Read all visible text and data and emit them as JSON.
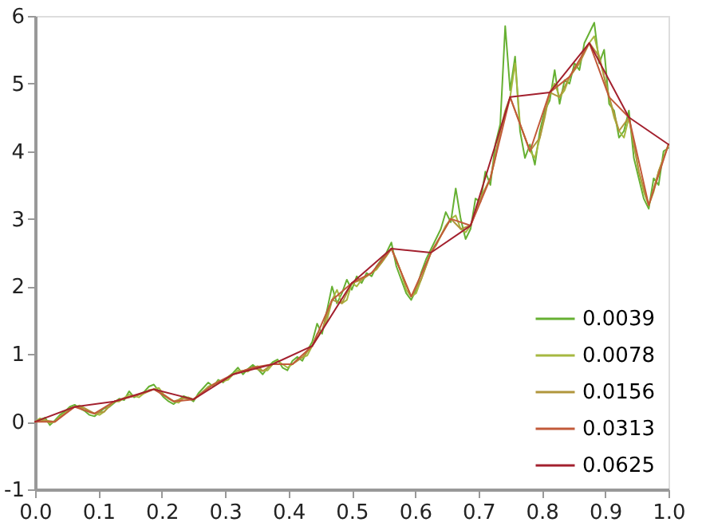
{
  "chart_data": {
    "type": "line",
    "x": [
      0,
      0.0078,
      0.0156,
      0.0234,
      0.0313,
      0.0391,
      0.0469,
      0.0547,
      0.0625,
      0.0703,
      0.0781,
      0.0859,
      0.0938,
      0.1016,
      0.1094,
      0.1172,
      0.125,
      0.1328,
      0.1406,
      0.1484,
      0.1563,
      0.1641,
      0.1719,
      0.1797,
      0.1875,
      0.1953,
      0.2031,
      0.2109,
      0.2188,
      0.2266,
      0.2344,
      0.2422,
      0.25,
      0.2578,
      0.2656,
      0.2734,
      0.2813,
      0.2891,
      0.2969,
      0.3047,
      0.3125,
      0.3203,
      0.3281,
      0.3359,
      0.3438,
      0.3516,
      0.3594,
      0.3672,
      0.375,
      0.3828,
      0.3906,
      0.3984,
      0.4063,
      0.4141,
      0.4219,
      0.4297,
      0.4375,
      0.4453,
      0.4531,
      0.4609,
      0.4688,
      0.4766,
      0.4844,
      0.4922,
      0.5,
      0.5078,
      0.5156,
      0.5234,
      0.5313,
      0.5391,
      0.5469,
      0.5547,
      0.5625,
      0.5703,
      0.5781,
      0.5859,
      0.5938,
      0.6016,
      0.6094,
      0.6172,
      0.625,
      0.6328,
      0.6406,
      0.6484,
      0.6563,
      0.6641,
      0.6719,
      0.6797,
      0.6875,
      0.6953,
      0.7031,
      0.7109,
      0.7188,
      0.7266,
      0.7344,
      0.7422,
      0.75,
      0.7578,
      0.7656,
      0.7734,
      0.7813,
      0.7891,
      0.7969,
      0.8047,
      0.8125,
      0.8203,
      0.8281,
      0.8359,
      0.8438,
      0.8516,
      0.8594,
      0.8672,
      0.875,
      0.8828,
      0.8906,
      0.8984,
      0.9063,
      0.9141,
      0.9219,
      0.9297,
      0.9375,
      0.9453,
      0.9531,
      0.9609,
      0.9688,
      0.9766,
      0.9844,
      0.9922,
      1.0
    ],
    "series": [
      {
        "name": "0.0039",
        "color": "#66b032",
        "values": [
          0,
          0.03,
          0.06,
          -0.05,
          0.02,
          0.1,
          0.15,
          0.22,
          0.25,
          0.2,
          0.16,
          0.1,
          0.08,
          0.14,
          0.2,
          0.22,
          0.28,
          0.34,
          0.32,
          0.45,
          0.36,
          0.4,
          0.44,
          0.52,
          0.55,
          0.45,
          0.36,
          0.3,
          0.26,
          0.32,
          0.38,
          0.35,
          0.3,
          0.42,
          0.5,
          0.58,
          0.52,
          0.62,
          0.58,
          0.66,
          0.72,
          0.8,
          0.7,
          0.78,
          0.84,
          0.78,
          0.7,
          0.8,
          0.88,
          0.92,
          0.8,
          0.76,
          0.9,
          0.96,
          0.9,
          1.05,
          1.18,
          1.45,
          1.3,
          1.65,
          2.0,
          1.75,
          1.9,
          2.1,
          1.95,
          2.15,
          2.05,
          2.2,
          2.15,
          2.3,
          2.4,
          2.5,
          2.65,
          2.3,
          2.1,
          1.9,
          1.8,
          1.95,
          2.2,
          2.4,
          2.55,
          2.7,
          2.85,
          3.1,
          2.95,
          3.45,
          3.0,
          2.7,
          2.85,
          3.3,
          3.25,
          3.7,
          3.5,
          4.1,
          4.4,
          5.85,
          4.9,
          5.4,
          4.3,
          3.9,
          4.1,
          3.8,
          4.3,
          4.6,
          4.75,
          5.2,
          4.7,
          5.05,
          5.0,
          5.3,
          5.2,
          5.6,
          5.75,
          5.9,
          5.3,
          5.5,
          4.7,
          4.6,
          4.2,
          4.3,
          4.6,
          3.9,
          3.6,
          3.3,
          3.15,
          3.6,
          3.5,
          4.0,
          4.05
        ]
      },
      {
        "name": "0.0078",
        "color": "#a6b840",
        "values": [
          0,
          0.05,
          0.02,
          -0.02,
          0,
          0.08,
          0.12,
          0.2,
          0.22,
          0.24,
          0.2,
          0.14,
          0.12,
          0.1,
          0.15,
          0.24,
          0.3,
          0.3,
          0.35,
          0.4,
          0.38,
          0.36,
          0.42,
          0.47,
          0.48,
          0.5,
          0.4,
          0.34,
          0.3,
          0.28,
          0.35,
          0.36,
          0.33,
          0.38,
          0.45,
          0.52,
          0.55,
          0.6,
          0.6,
          0.62,
          0.7,
          0.76,
          0.75,
          0.74,
          0.8,
          0.82,
          0.75,
          0.76,
          0.85,
          0.9,
          0.85,
          0.8,
          0.85,
          0.92,
          0.95,
          0.98,
          1.12,
          1.3,
          1.35,
          1.5,
          1.8,
          1.95,
          1.75,
          1.8,
          2.05,
          2.0,
          2.1,
          2.15,
          2.2,
          2.25,
          2.35,
          2.45,
          2.56,
          2.4,
          2.2,
          1.95,
          1.85,
          1.9,
          2.1,
          2.3,
          2.5,
          2.6,
          2.75,
          2.9,
          3.0,
          3.05,
          2.85,
          2.8,
          2.9,
          3.1,
          3.3,
          3.45,
          3.6,
          3.9,
          4.3,
          4.6,
          4.8,
          5.3,
          4.4,
          4.2,
          4.0,
          3.9,
          4.2,
          4.5,
          4.87,
          5.0,
          4.8,
          4.9,
          5.1,
          5.2,
          5.3,
          5.5,
          5.6,
          5.7,
          5.4,
          5.1,
          4.8,
          4.5,
          4.3,
          4.2,
          4.5,
          4.1,
          3.7,
          3.4,
          3.2,
          3.4,
          3.7,
          3.9,
          4.1
        ]
      },
      {
        "name": "0.0156",
        "color": "#b0963c",
        "x": [
          0,
          0.0156,
          0.0313,
          0.0469,
          0.0625,
          0.0781,
          0.0938,
          0.1094,
          0.125,
          0.1406,
          0.1563,
          0.1719,
          0.1875,
          0.2031,
          0.2188,
          0.2344,
          0.25,
          0.2656,
          0.2813,
          0.2969,
          0.3125,
          0.3281,
          0.3438,
          0.3594,
          0.375,
          0.3906,
          0.4063,
          0.4219,
          0.4375,
          0.4531,
          0.4688,
          0.4844,
          0.5,
          0.5156,
          0.5313,
          0.5469,
          0.5625,
          0.5781,
          0.5938,
          0.6094,
          0.625,
          0.6406,
          0.6563,
          0.6719,
          0.6875,
          0.7031,
          0.7188,
          0.7344,
          0.75,
          0.7656,
          0.7813,
          0.7969,
          0.8125,
          0.8281,
          0.8438,
          0.8594,
          0.875,
          0.8906,
          0.9063,
          0.9219,
          0.9375,
          0.9531,
          0.9688,
          0.9844,
          1.0
        ],
        "values": [
          0,
          0.02,
          0,
          0.12,
          0.22,
          0.2,
          0.12,
          0.15,
          0.3,
          0.35,
          0.38,
          0.42,
          0.48,
          0.4,
          0.3,
          0.35,
          0.33,
          0.45,
          0.55,
          0.6,
          0.7,
          0.75,
          0.8,
          0.75,
          0.85,
          0.85,
          0.85,
          0.95,
          1.12,
          1.35,
          1.8,
          1.75,
          2.05,
          2.1,
          2.2,
          2.35,
          2.56,
          2.2,
          1.85,
          2.1,
          2.5,
          2.75,
          3.0,
          2.85,
          2.9,
          3.3,
          3.6,
          4.3,
          4.8,
          4.4,
          4.0,
          4.2,
          4.87,
          4.8,
          5.1,
          5.3,
          5.6,
          5.4,
          4.8,
          4.3,
          4.5,
          3.7,
          3.2,
          3.7,
          4.1
        ]
      },
      {
        "name": "0.0313",
        "color": "#c25a3a",
        "x": [
          0,
          0.0313,
          0.0625,
          0.0938,
          0.125,
          0.1563,
          0.1875,
          0.2188,
          0.25,
          0.2813,
          0.3125,
          0.3438,
          0.375,
          0.4063,
          0.4375,
          0.4688,
          0.5,
          0.5313,
          0.5625,
          0.5938,
          0.625,
          0.6563,
          0.6875,
          0.7188,
          0.75,
          0.7813,
          0.8125,
          0.8438,
          0.875,
          0.9063,
          0.9375,
          0.9688,
          1.0
        ],
        "values": [
          0,
          0,
          0.22,
          0.12,
          0.3,
          0.38,
          0.48,
          0.3,
          0.33,
          0.55,
          0.7,
          0.8,
          0.85,
          0.85,
          1.12,
          1.8,
          2.05,
          2.2,
          2.56,
          1.85,
          2.5,
          3.0,
          2.9,
          3.6,
          4.8,
          4.0,
          4.87,
          5.1,
          5.6,
          4.8,
          4.5,
          3.2,
          4.1
        ]
      },
      {
        "name": "0.0625",
        "color": "#a3202e",
        "x": [
          0,
          0.0625,
          0.125,
          0.1875,
          0.25,
          0.3125,
          0.375,
          0.4375,
          0.5,
          0.5625,
          0.625,
          0.6875,
          0.75,
          0.8125,
          0.875,
          0.9375,
          1.0
        ],
        "values": [
          0,
          0.22,
          0.3,
          0.48,
          0.33,
          0.7,
          0.85,
          1.12,
          2.05,
          2.56,
          2.5,
          2.9,
          4.8,
          4.87,
          5.6,
          4.5,
          4.1
        ]
      }
    ],
    "xlim": [
      0,
      1.0
    ],
    "xticks": [
      {
        "value": 0,
        "label": "0.0"
      },
      0.1,
      0.2,
      0.3,
      0.4,
      0.5,
      0.6,
      0.7,
      0.8,
      0.9,
      {
        "value": 1.0,
        "label": "1.0"
      }
    ],
    "ylim": [
      -1,
      6
    ],
    "yticks": [
      -1,
      0,
      1,
      2,
      3,
      4,
      5,
      6
    ],
    "legend": "bottom right",
    "grid": false,
    "marker": "none",
    "line_style": "solid"
  }
}
